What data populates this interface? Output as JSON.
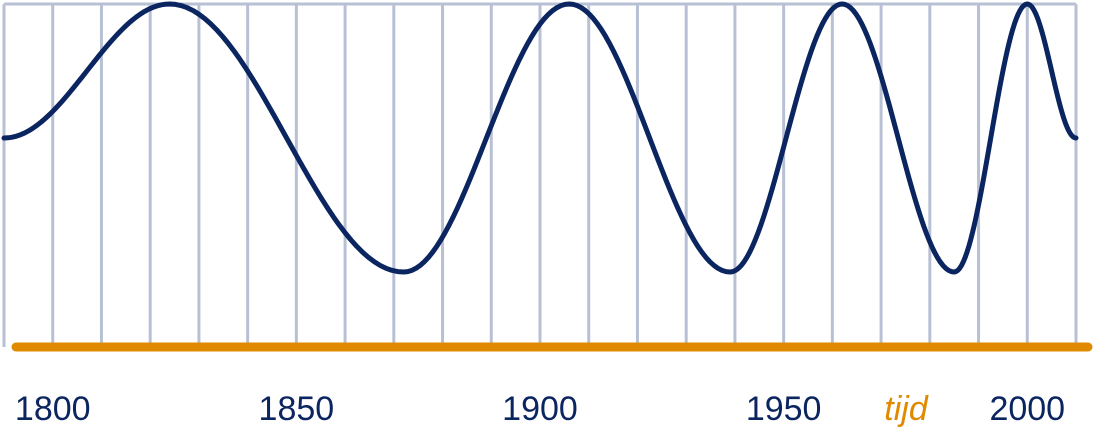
{
  "chart_data": {
    "type": "line",
    "title": "",
    "xlabel": "tijd",
    "ylabel": "",
    "xlim": [
      1790,
      2010
    ],
    "ylim": [
      -1,
      1
    ],
    "grid": true,
    "grid_step": 10,
    "x_ticks": [
      1800,
      1850,
      1900,
      1950,
      2000
    ],
    "x_tick_labels": [
      "1800",
      "1850",
      "1900",
      "1950",
      "2000"
    ],
    "series": [
      {
        "x": [
          1790,
          1824,
          1872,
          1906,
          1939,
          1962,
          1985,
          2000,
          2010
        ],
        "values": [
          0,
          1,
          -1,
          1,
          -1,
          1,
          -1,
          1,
          0
        ]
      }
    ],
    "colors": {
      "curve": "#0b2560",
      "axis": "#e08a00",
      "grid": "#b8c0d4"
    }
  }
}
